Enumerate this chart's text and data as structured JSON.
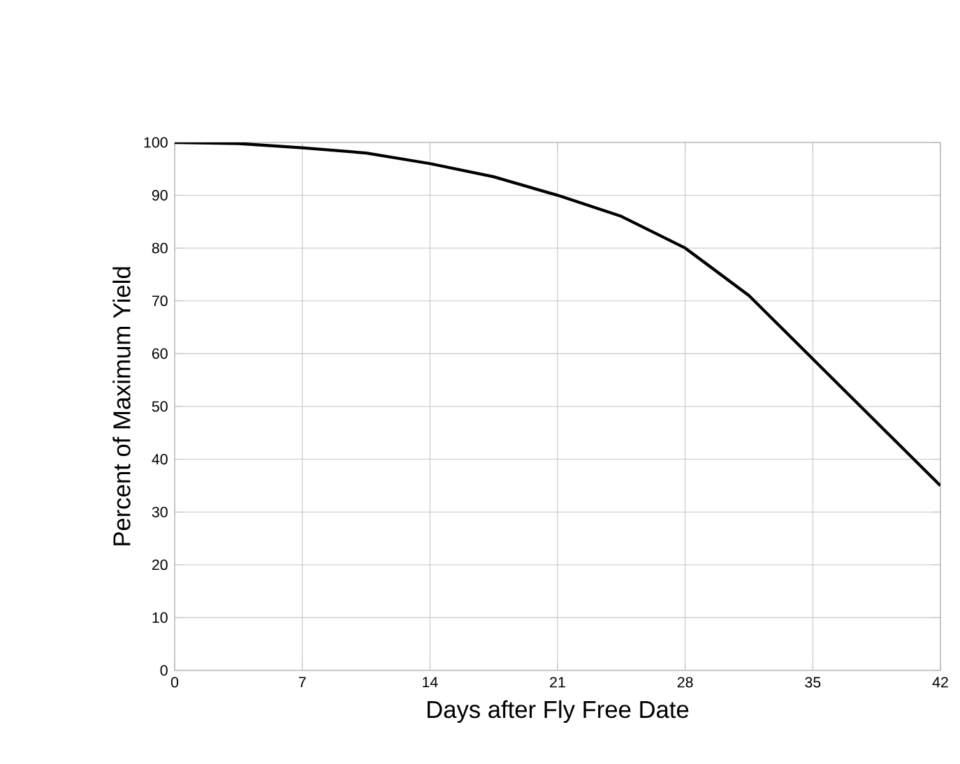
{
  "chart_data": {
    "type": "line",
    "xlabel": "Days after Fly Free Date",
    "ylabel": "Percent of Maximum Yield",
    "x": [
      0,
      3.5,
      7,
      10.5,
      14,
      17.5,
      21,
      24.5,
      28,
      31.5,
      35,
      38.5,
      42
    ],
    "series": [
      {
        "color": "#000000",
        "values": [
          100,
          99.8,
          99,
          98,
          96,
          93.5,
          90,
          86,
          80,
          71,
          59,
          47,
          35
        ]
      }
    ],
    "xlim": [
      0,
      42
    ],
    "ylim": [
      0,
      100
    ],
    "xticks": [
      0,
      7,
      14,
      21,
      28,
      35,
      42
    ],
    "yticks": [
      0,
      10,
      20,
      30,
      40,
      50,
      60,
      70,
      80,
      90,
      100
    ],
    "grid": true,
    "marker": "none",
    "line_style": "solid"
  }
}
